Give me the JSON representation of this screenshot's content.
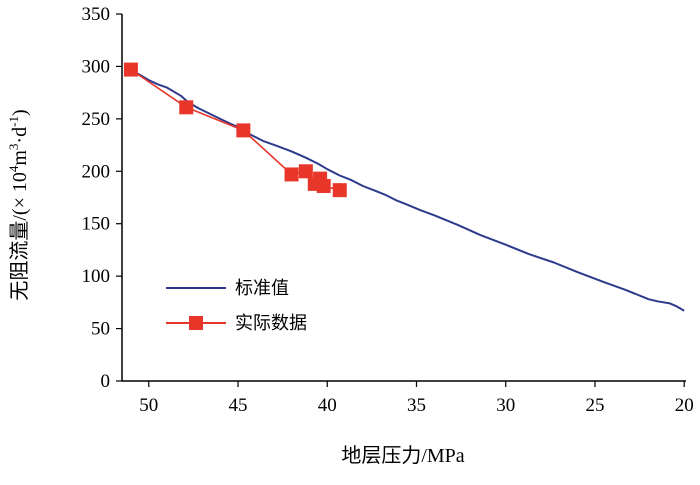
{
  "chart_data": {
    "type": "line",
    "title": "",
    "xlabel": "地层压力/MPa",
    "ylabel_main": "无阻流量/(× 10",
    "ylabel_sup1": "4",
    "ylabel_mid": "m",
    "ylabel_sup2": "3",
    "ylabel_mid2": "·d",
    "ylabel_sup3": "-1",
    "ylabel_end": ")",
    "x_reversed": true,
    "xlim": [
      51.5,
      19.9
    ],
    "ylim": [
      0,
      350
    ],
    "xticks": [
      50,
      45,
      40,
      35,
      30,
      25,
      20
    ],
    "yticks": [
      0,
      50,
      100,
      150,
      200,
      250,
      300,
      350
    ],
    "xtick_labels": [
      "50",
      "45",
      "40",
      "35",
      "30",
      "25",
      "20"
    ],
    "ytick_labels": [
      "0",
      "50",
      "100",
      "150",
      "200",
      "250",
      "300",
      "350"
    ],
    "grid": false,
    "legend_position": "center-left",
    "series": [
      {
        "name": "标准值",
        "color": "#2e3a8c",
        "marker": "none",
        "x": [
          51.1,
          50.5,
          50.0,
          49.5,
          49.0,
          48.6,
          48.2,
          47.8,
          47.2,
          46.6,
          46.0,
          45.5,
          45.0,
          44.3,
          43.6,
          42.8,
          42.0,
          41.2,
          40.5,
          40.0,
          39.3,
          38.7,
          38.0,
          37.4,
          36.8,
          36.1,
          35.5,
          34.8,
          34.0,
          32.7,
          31.4,
          30.0,
          28.7,
          27.3,
          26.0,
          24.6,
          23.3,
          22.0,
          21.5,
          20.8,
          20.4,
          20.0
        ],
        "y": [
          297,
          292,
          287,
          283,
          280,
          276,
          272,
          266,
          260,
          255,
          250,
          246,
          242,
          235,
          229,
          224,
          219,
          213,
          207,
          202,
          196,
          192,
          186,
          182,
          178,
          172,
          168,
          163,
          158,
          149,
          139,
          130,
          121,
          113,
          104,
          95,
          87,
          78,
          76,
          74,
          71,
          67
        ]
      },
      {
        "name": "实际数据",
        "color": "#e8362a",
        "marker": "square",
        "x": [
          51.0,
          47.9,
          44.7,
          42.0,
          41.2,
          40.7,
          40.4,
          40.2,
          39.3
        ],
        "y": [
          297,
          261,
          239,
          197,
          200,
          188,
          193,
          186,
          182
        ]
      }
    ]
  }
}
